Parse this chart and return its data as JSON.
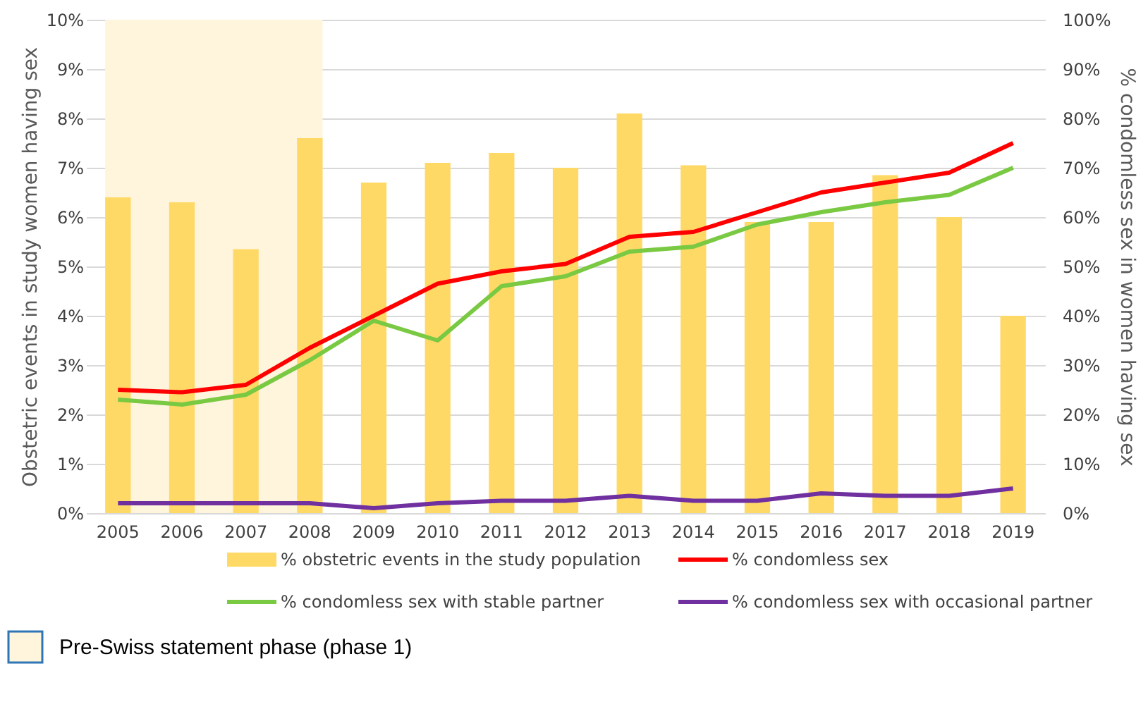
{
  "chart_data": {
    "type": "bar",
    "categories": [
      "2005",
      "2006",
      "2007",
      "2008",
      "2009",
      "2010",
      "2011",
      "2012",
      "2013",
      "2014",
      "2015",
      "2016",
      "2017",
      "2018",
      "2019"
    ],
    "ylabel": "Obstetric events in study women having sex",
    "y2label": "% condomless sex in women having sex",
    "ylim": [
      0,
      10
    ],
    "yticks": [
      {
        "value": 0,
        "label": "0%"
      },
      {
        "value": 1,
        "label": "1%"
      },
      {
        "value": 2,
        "label": "2%"
      },
      {
        "value": 3,
        "label": "3%"
      },
      {
        "value": 4,
        "label": "4%"
      },
      {
        "value": 5,
        "label": "5%"
      },
      {
        "value": 6,
        "label": "6%"
      },
      {
        "value": 7,
        "label": "7%"
      },
      {
        "value": 8,
        "label": "8%"
      },
      {
        "value": 9,
        "label": "9%"
      },
      {
        "value": 10,
        "label": "10%"
      }
    ],
    "y2lim": [
      0,
      100
    ],
    "y2ticks": [
      {
        "value": 0,
        "label": "0%"
      },
      {
        "value": 10,
        "label": "10%"
      },
      {
        "value": 20,
        "label": "20%"
      },
      {
        "value": 30,
        "label": "30%"
      },
      {
        "value": 40,
        "label": "40%"
      },
      {
        "value": 50,
        "label": "50%"
      },
      {
        "value": 60,
        "label": "60%"
      },
      {
        "value": 70,
        "label": "70%"
      },
      {
        "value": 80,
        "label": "80%"
      },
      {
        "value": 90,
        "label": "90%"
      },
      {
        "value": 100,
        "label": "100%"
      }
    ],
    "grid": "y",
    "legend": "bottom",
    "series": [
      {
        "name": "% obstetric events in the study population",
        "color": "#ffd966",
        "values": [
          6.4,
          6.3,
          5.35,
          7.6,
          6.7,
          7.1,
          7.3,
          7.0,
          8.1,
          7.05,
          5.9,
          5.9,
          6.85,
          6.0,
          4.0
        ]
      },
      {
        "name": "% condomless sex",
        "type": "line",
        "axis": "y2",
        "color": "#ff0000",
        "values": [
          25,
          24.5,
          26,
          33.5,
          40,
          46.5,
          49,
          50.5,
          56,
          57,
          61,
          65,
          67,
          69,
          75
        ]
      },
      {
        "name": "% condomless sex with stable partner",
        "type": "line",
        "axis": "y2",
        "color": "#7ac943",
        "values": [
          23,
          22,
          24,
          31,
          39,
          35,
          46,
          48,
          53,
          54,
          58.5,
          61,
          63,
          64.5,
          70
        ]
      },
      {
        "name": "% condomless sex with occasional partner",
        "type": "line",
        "axis": "y2",
        "color": "#7030a0",
        "values": [
          2,
          2,
          2,
          2,
          1,
          2,
          2.5,
          2.5,
          3.5,
          2.5,
          2.5,
          4,
          3.5,
          3.5,
          5
        ]
      }
    ],
    "bands": [
      {
        "axis": "x",
        "from": "2005",
        "to": "2008",
        "label": "Pre-Swiss statement phase (phase 1)",
        "color": "#fff4dc"
      }
    ]
  }
}
